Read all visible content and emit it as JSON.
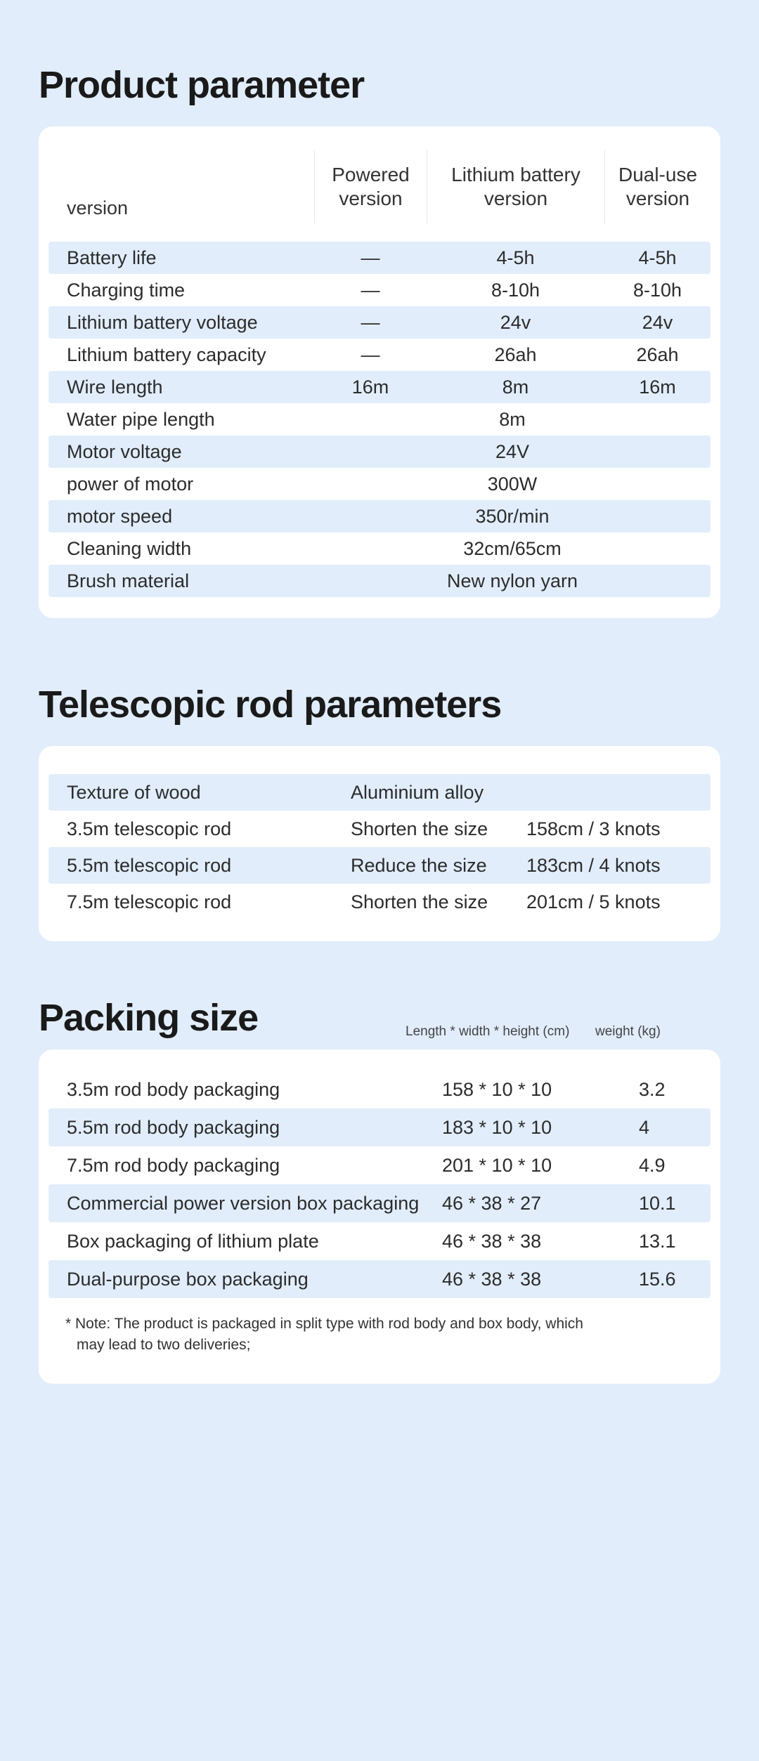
{
  "colors": {
    "page_bg": "#e1edfb",
    "card_bg": "#ffffff",
    "stripe_bg": "#e1edfb",
    "text": "#2c2c2c",
    "heading": "#1a1a1a",
    "divider": "#e6e6e6"
  },
  "product": {
    "title": "Product parameter",
    "header": {
      "label": "version",
      "cols": [
        "Powered\nversion",
        "Lithium battery\nversion",
        "Dual-use\nversion"
      ]
    },
    "rows": [
      {
        "label": "Battery life",
        "vals": [
          "—",
          "4-5h",
          "4-5h"
        ]
      },
      {
        "label": "Charging time",
        "vals": [
          "—",
          "8-10h",
          "8-10h"
        ]
      },
      {
        "label": "Lithium battery voltage",
        "vals": [
          "—",
          "24v",
          "24v"
        ]
      },
      {
        "label": "Lithium battery capacity",
        "vals": [
          "—",
          "26ah",
          "26ah"
        ]
      },
      {
        "label": "Wire length",
        "vals": [
          "16m",
          "8m",
          "16m"
        ]
      },
      {
        "label": "Water pipe length",
        "merged": "8m"
      },
      {
        "label": "Motor voltage",
        "merged": "24V"
      },
      {
        "label": "power of motor",
        "merged": "300W"
      },
      {
        "label": "motor speed",
        "merged": "350r/min"
      },
      {
        "label": "Cleaning width",
        "merged": "32cm/65cm"
      },
      {
        "label": "Brush material",
        "merged": "New nylon yarn"
      }
    ]
  },
  "telescopic": {
    "title": "Telescopic rod parameters",
    "rows": [
      {
        "c1": "Texture of wood",
        "c2": "Aluminium alloy",
        "c3": ""
      },
      {
        "c1": "3.5m telescopic rod",
        "c2": "Shorten the size",
        "c3": "158cm / 3 knots"
      },
      {
        "c1": "5.5m telescopic rod",
        "c2": "Reduce the size",
        "c3": "183cm / 4 knots"
      },
      {
        "c1": "7.5m telescopic rod",
        "c2": "Shorten the size",
        "c3": "201cm / 5 knots"
      }
    ]
  },
  "packing": {
    "title": "Packing size",
    "sub_dims": "Length *  width * height (cm)",
    "sub_weight": "weight (kg)",
    "rows": [
      {
        "c1": "3.5m rod body packaging",
        "c2": "158  *  10  *  10",
        "c3": "3.2"
      },
      {
        "c1": "5.5m rod body packaging",
        "c2": "183  *  10  *  10",
        "c3": "4"
      },
      {
        "c1": "7.5m rod body packaging",
        "c2": "201  *  10  *  10",
        "c3": "4.9"
      },
      {
        "c1": "Commercial power version box packaging",
        "c2": "46  *  38  *  27",
        "c3": "10.1"
      },
      {
        "c1": "Box packaging of lithium plate",
        "c2": "46  *  38  *  38",
        "c3": "13.1"
      },
      {
        "c1": "Dual-purpose box packaging",
        "c2": "46  *  38  *  38",
        "c3": "15.6"
      }
    ],
    "note_line1": "* Note: The product is packaged in split type with rod body and box body, which",
    "note_line2": "may lead to two deliveries;"
  }
}
